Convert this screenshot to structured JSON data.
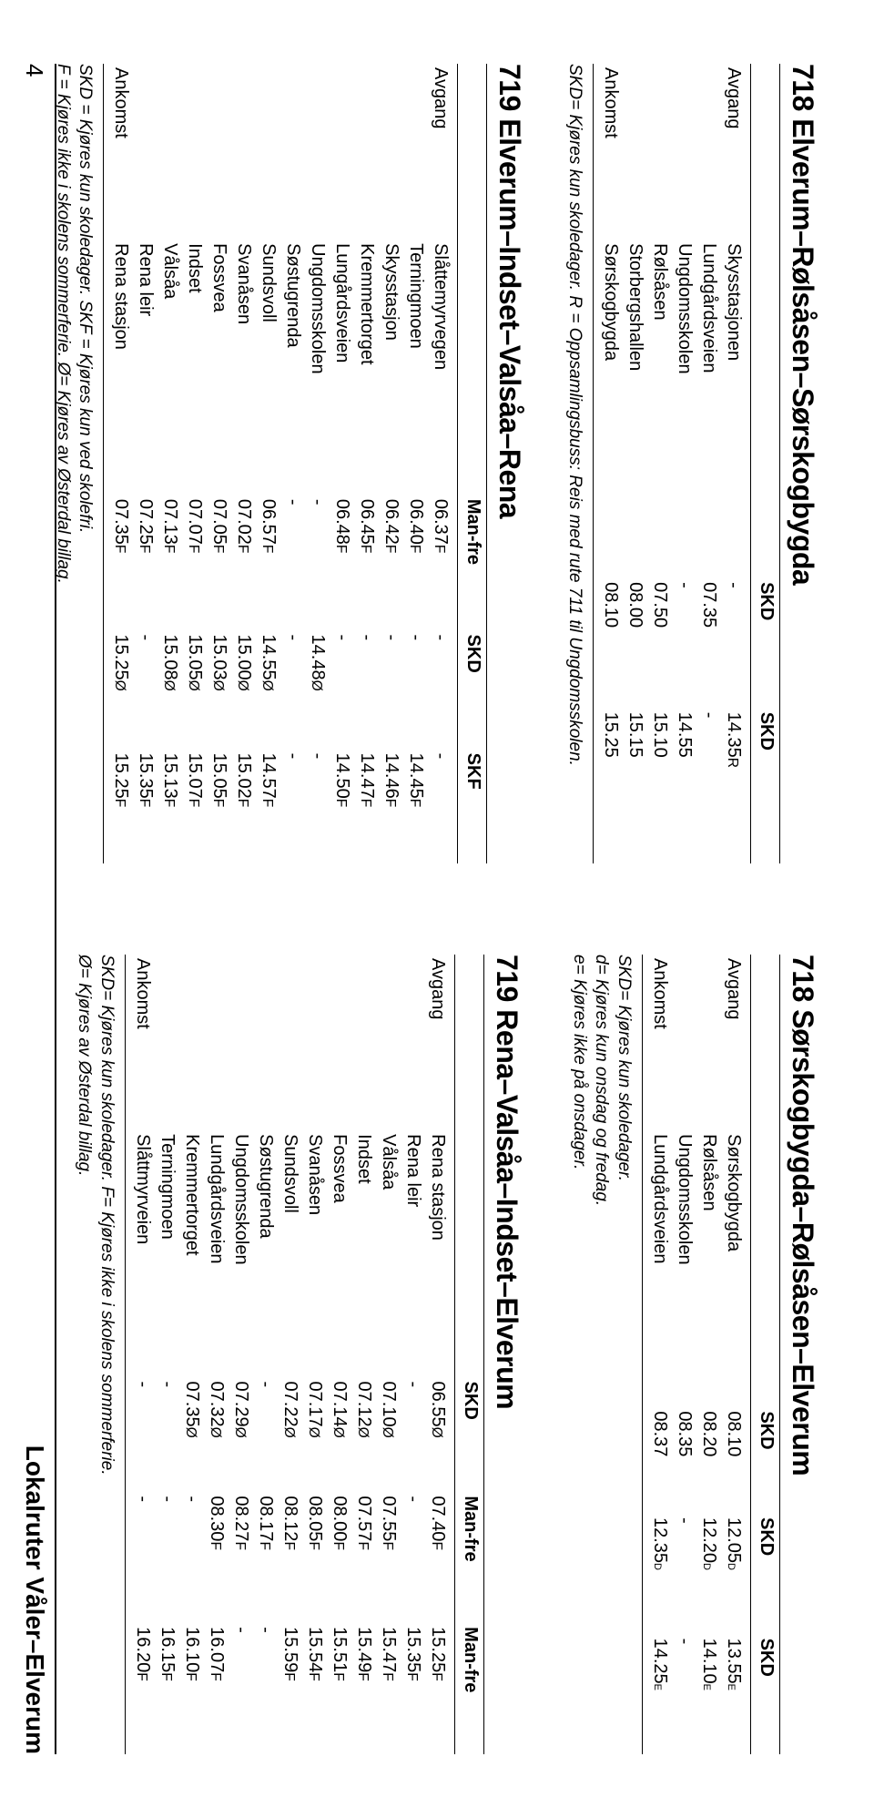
{
  "footer": {
    "page_number": "4",
    "title": "Lokalruter Våler–Elverum"
  },
  "tables": [
    {
      "id": "t718a",
      "title": "718 Elverum–Rølsåsen–Sørskogbygda",
      "col_headers": [
        "",
        "",
        "SKD",
        "SKD"
      ],
      "dep_label": "Avgang",
      "arr_label": "Ankomst",
      "dep_rows": [
        [
          "Skysstasjonen",
          "-",
          "14.35R"
        ],
        [
          "Lundgårdsveien",
          "07.35",
          "-"
        ],
        [
          "Ungdomsskolen",
          "-",
          "14.55"
        ],
        [
          "Rølsåsen",
          "07.50",
          "15.10"
        ],
        [
          "Storbergshallen",
          "08.00",
          "15.15"
        ]
      ],
      "arr_rows": [
        [
          "Sørskogbygda",
          "08.10",
          "15.25"
        ]
      ],
      "notes": [
        "SKD= Kjøres kun skoledager.   R = Oppsamlingsbuss: Reis med rute 711 til Ungdomsskolen."
      ]
    },
    {
      "id": "t719a",
      "title": "719 Elverum–Indset–Valsåa–Rena",
      "col_headers": [
        "",
        "",
        "Man-fre",
        "SKD",
        "SKF"
      ],
      "dep_label": "Avgang",
      "arr_label": "Ankomst",
      "dep_rows": [
        [
          "Slåttemyrvegen",
          "06.37F",
          "-",
          "-"
        ],
        [
          "Terningmoen",
          "06.40F",
          "-",
          "14.45F"
        ],
        [
          "Skysstasjon",
          "06.42F",
          "-",
          "14.46F"
        ],
        [
          "Kremmertorget",
          "06.45F",
          "-",
          "14.47F"
        ],
        [
          "Lungårdsveien",
          "06.48F",
          "-",
          "14.50F"
        ],
        [
          "Ungdomsskolen",
          "-",
          "14.48Ø",
          "-"
        ],
        [
          "Søstugrenda",
          "-",
          "-",
          "-"
        ],
        [
          "Sundsvoll",
          "06.57F",
          "14.55Ø",
          "14.57F"
        ],
        [
          "Svanåsen",
          "07.02F",
          "15.00Ø",
          "15.02F"
        ],
        [
          "Fossvea",
          "07.05F",
          "15.03Ø",
          "15.05F"
        ],
        [
          "Indset",
          "07.07F",
          "15.05Ø",
          "15.07F"
        ],
        [
          "Vålsåa",
          "07.13F",
          "15.08Ø",
          "15.13F"
        ],
        [
          "Rena leir",
          "07.25F",
          "-",
          "15.35F"
        ]
      ],
      "arr_rows": [
        [
          "Rena stasjon",
          "07.35F",
          "15.25Ø",
          "15.25F"
        ]
      ],
      "notes": [
        "SKD = Kjøres kun skoledager.  SKF = Kjøres kun ved skolefri.",
        "F = Kjøres ikke i skolens sommerferie.   Ø= Kjøres av Østerdal billag."
      ]
    },
    {
      "id": "t718b",
      "title": "718 Sørskogbygda–Rølsåsen–Elverum",
      "col_headers": [
        "",
        "",
        "SKD",
        "SKD",
        "SKD"
      ],
      "dep_label": "Avgang",
      "arr_label": "Ankomst",
      "dep_rows": [
        [
          "Sørskogbygda",
          "08.10",
          "12.05d",
          "13.55e"
        ],
        [
          "Rølsåsen",
          "08.20",
          "12.20d",
          "14.10e"
        ],
        [
          "Ungdomsskolen",
          "08.35",
          "-",
          "-"
        ]
      ],
      "arr_rows": [
        [
          "Lundgårdsveien",
          "08.37",
          "12.35d",
          "14.25e"
        ]
      ],
      "notes": [
        "SKD= Kjøres kun skoledager.",
        "d= Kjøres kun onsdag og fredag.",
        "e= Kjøres ikke på onsdager."
      ]
    },
    {
      "id": "t719b",
      "title": "719 Rena–Valsåa–Indset–Elverum",
      "col_headers": [
        "",
        "",
        "SKD",
        "Man-fre",
        "Man-fre"
      ],
      "dep_label": "Avgang",
      "arr_label": "Ankomst",
      "dep_rows": [
        [
          "Rena stasjon",
          "06.55Ø",
          "07.40F",
          "15.25F"
        ],
        [
          "Rena leir",
          "-",
          "-",
          "15.35F"
        ],
        [
          "Vålsåa",
          "07.10Ø",
          "07.55F",
          "15.47F"
        ],
        [
          "Indset",
          "07.12Ø",
          "07.57F",
          "15.49F"
        ],
        [
          "Fossvea",
          "07.14Ø",
          "08.00F",
          "15.51F"
        ],
        [
          "Svanåsen",
          "07.17Ø",
          "08.05F",
          "15.54F"
        ],
        [
          "Sundsvoll",
          "07.22Ø",
          "08.12F",
          "15.59F"
        ],
        [
          "Søstugrenda",
          "-",
          "08.17F",
          "-"
        ],
        [
          "Ungdomsskolen",
          "07.29Ø",
          "08.27F",
          "-"
        ],
        [
          "Lundgårdsveien",
          "07.32Ø",
          "08.30F",
          "16.07F"
        ],
        [
          "Kremmertorget",
          "07.35Ø",
          "-",
          "16.10F"
        ],
        [
          "Terningmoen",
          "-",
          "-",
          "16.15F"
        ]
      ],
      "arr_rows": [
        [
          "Slåttmyrveien",
          "-",
          "-",
          "16.20F"
        ]
      ],
      "notes": [
        "SKD= Kjøres kun skoledager.        F= Kjøres ikke i skolens sommerferie.",
        "Ø= Kjøres av Østerdal billag."
      ]
    }
  ],
  "style": {
    "font_family": "Myriad Pro, Segoe UI, Arial, sans-serif",
    "title_fontsize_pt": 24,
    "body_fontsize_pt": 15,
    "notes_fontsize_pt": 14,
    "rule_color": "#000000",
    "background": "#ffffff",
    "text_color": "#000000",
    "suffix_letters": [
      "R",
      "F",
      "Ø",
      "d",
      "e"
    ]
  }
}
